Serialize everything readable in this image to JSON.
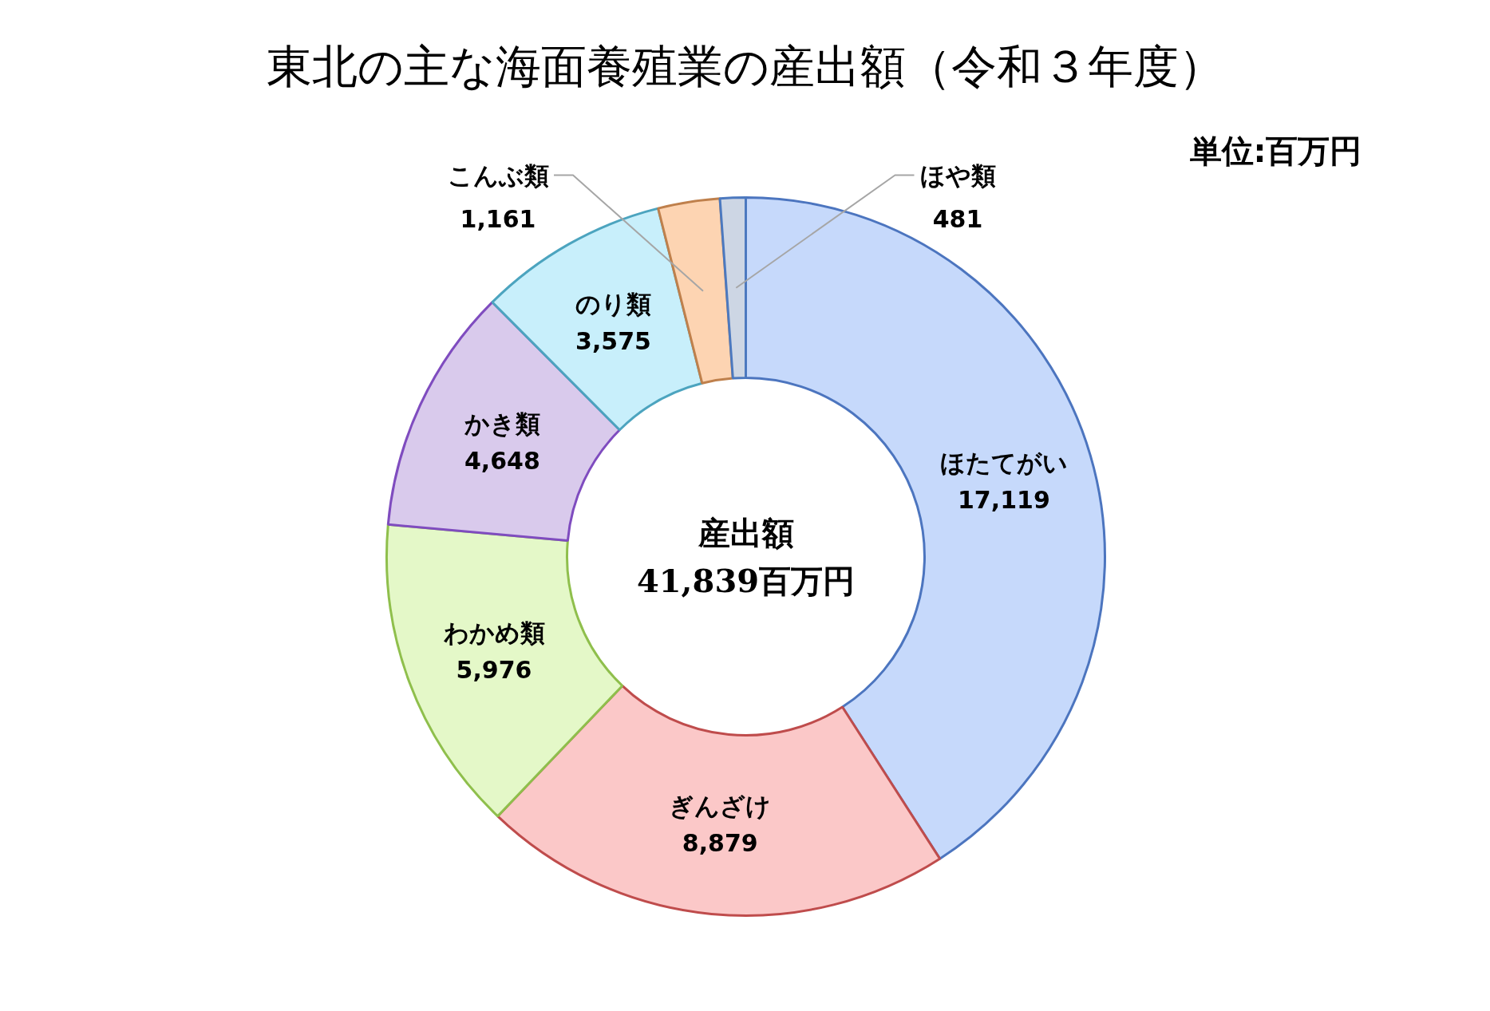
{
  "chart_data": {
    "type": "donut",
    "title": "東北の主な海面養殖業の産出額（令和３年度）",
    "categories": [
      "ほたてがい",
      "ぎんざけ",
      "わかめ類",
      "かき類",
      "のり類",
      "こんぶ類",
      "ほや類"
    ],
    "values": [
      17119,
      8879,
      5976,
      4648,
      3575,
      1161,
      481
    ],
    "value_labels": [
      "17,119",
      "8,879",
      "5,976",
      "4,648",
      "3,575",
      "1,161",
      "481"
    ],
    "colors": [
      "#c6d9fb",
      "#fbc8c8",
      "#e4f8c8",
      "#d9caec",
      "#c8effb",
      "#fdd4b2",
      "#cdd6e4"
    ],
    "annotations": [
      "産出額",
      "41,839百万円",
      "単位:百万円"
    ]
  }
}
